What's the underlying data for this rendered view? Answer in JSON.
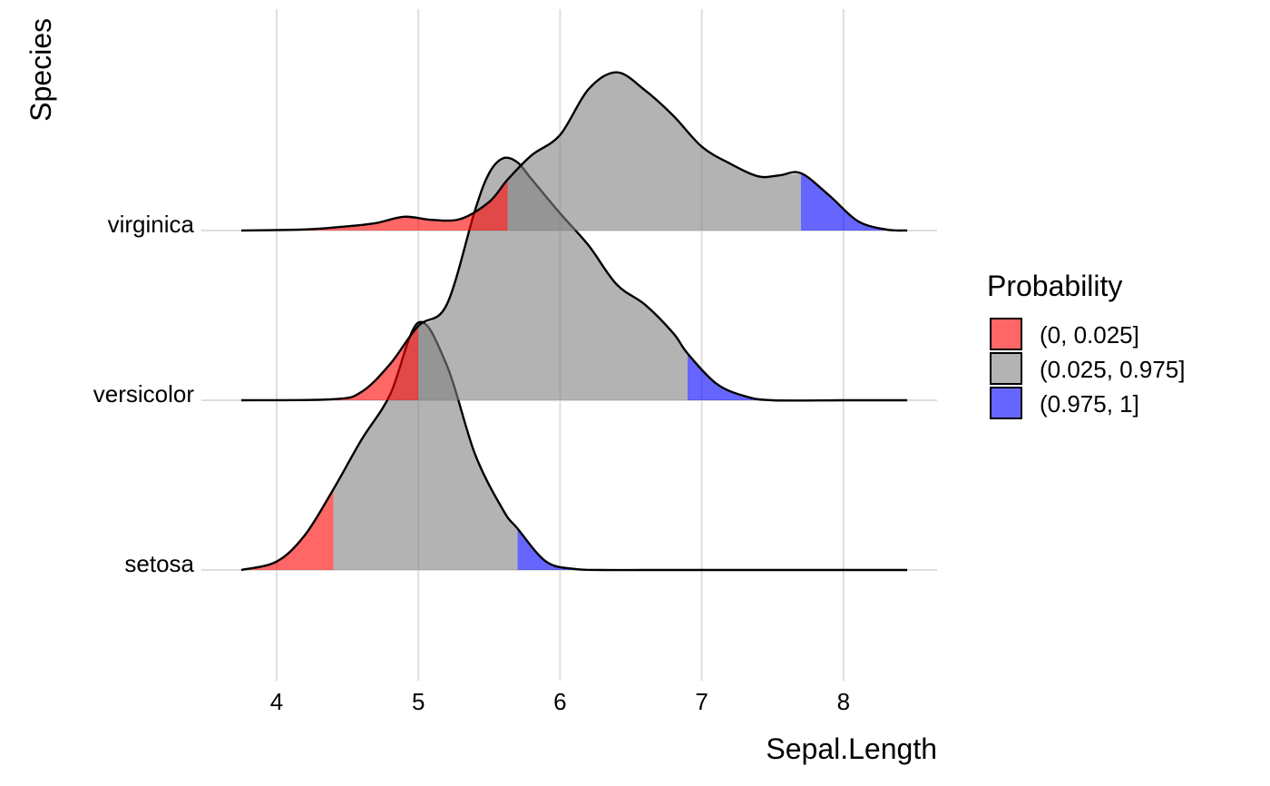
{
  "chart_data": {
    "type": "ridgeline",
    "xlabel": "Sepal.Length",
    "ylabel": "Species",
    "xlim": [
      3.75,
      8.45
    ],
    "x_ticks": [
      "4",
      "5",
      "6",
      "7",
      "8"
    ],
    "grid": "vertical major gridlines and horizontal baselines",
    "legend": {
      "title": "Probability",
      "position": "right",
      "items": [
        {
          "label": "(0, 0.025]",
          "color": "#ff0000"
        },
        {
          "label": "(0.025, 0.975]",
          "color": "#808080"
        },
        {
          "label": "(0.975, 1]",
          "color": "#0000ff"
        }
      ]
    },
    "fill_opacity": 0.6,
    "series": [
      {
        "name": "setosa",
        "quantile_cutoffs": [
          4.4,
          5.7
        ],
        "density": {
          "x": [
            3.75,
            4.0,
            4.2,
            4.4,
            4.6,
            4.8,
            5.0,
            5.2,
            5.4,
            5.6,
            5.7,
            5.9,
            6.1,
            6.3,
            6.6,
            7.0,
            7.5,
            8.0,
            8.45
          ],
          "y": [
            0.0,
            0.08,
            0.33,
            0.76,
            1.23,
            1.65,
            2.33,
            1.93,
            1.09,
            0.56,
            0.39,
            0.08,
            0.01,
            0.0,
            0.0,
            0.0,
            0.0,
            0.0,
            0.0
          ]
        }
      },
      {
        "name": "versicolor",
        "quantile_cutoffs": [
          5.0,
          6.9
        ],
        "density": {
          "x": [
            3.75,
            4.4,
            4.6,
            4.8,
            5.0,
            5.2,
            5.4,
            5.5,
            5.6,
            5.7,
            5.8,
            6.0,
            6.2,
            6.4,
            6.6,
            6.8,
            6.9,
            7.1,
            7.3,
            7.5,
            8.0,
            8.45
          ],
          "y": [
            0.0,
            0.01,
            0.08,
            0.34,
            0.7,
            0.9,
            1.79,
            2.14,
            2.28,
            2.24,
            2.08,
            1.76,
            1.46,
            1.09,
            0.9,
            0.63,
            0.44,
            0.16,
            0.04,
            0.0,
            0.0,
            0.0
          ]
        }
      },
      {
        "name": "virginica",
        "quantile_cutoffs": [
          5.63,
          7.7
        ],
        "density": {
          "x": [
            3.75,
            4.2,
            4.5,
            4.7,
            4.9,
            5.1,
            5.3,
            5.5,
            5.63,
            5.8,
            6.0,
            6.2,
            6.4,
            6.6,
            6.8,
            7.0,
            7.2,
            7.4,
            7.55,
            7.7,
            7.9,
            8.1,
            8.3,
            8.45
          ],
          "y": [
            0.0,
            0.01,
            0.04,
            0.07,
            0.13,
            0.1,
            0.11,
            0.27,
            0.48,
            0.71,
            0.9,
            1.33,
            1.49,
            1.32,
            1.08,
            0.79,
            0.63,
            0.51,
            0.52,
            0.54,
            0.33,
            0.09,
            0.01,
            0.0
          ]
        }
      }
    ]
  }
}
